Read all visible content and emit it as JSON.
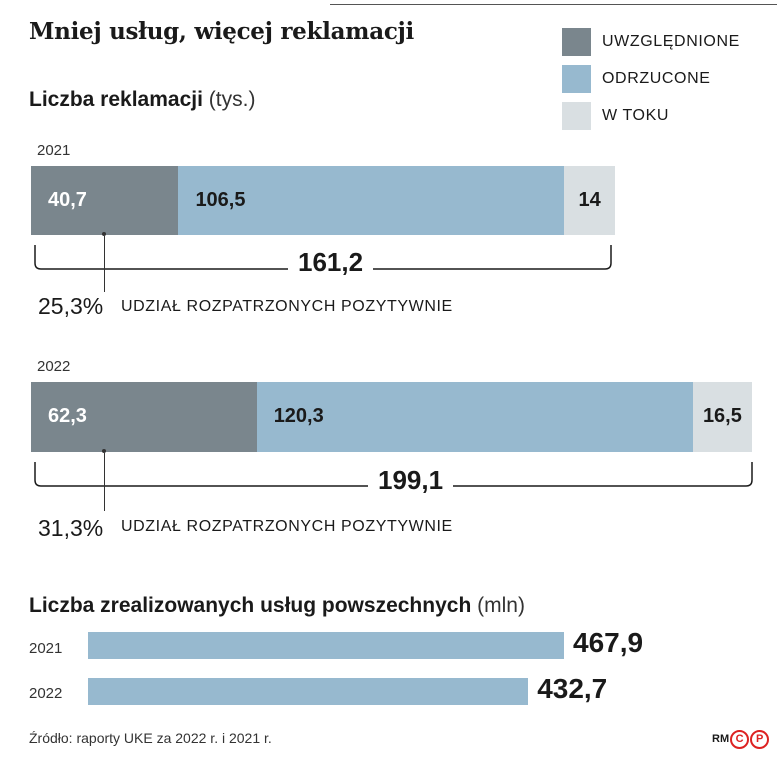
{
  "title": "Mniej usług, więcej reklamacji",
  "legend": [
    {
      "label": "UWZGLĘDNIONE",
      "color": "#7a868d"
    },
    {
      "label": "ODRZUCONE",
      "color": "#97b9cf"
    },
    {
      "label": "W TOKU",
      "color": "#d9dfe2"
    }
  ],
  "complaints": {
    "title_bold": "Liczba reklamacji",
    "title_unit": "(tys.)"
  },
  "services": {
    "title_bold": "Liczba zrealizowanych usług powszechnych",
    "title_unit": "(mln)"
  },
  "source": "Źródło: raporty UKE za 2022 r. i 2021 r.",
  "logo": {
    "text": "RM",
    "c": "C",
    "p": "P"
  },
  "chart_data": [
    {
      "type": "bar",
      "stacked": true,
      "orientation": "horizontal",
      "categories": [
        "2021",
        "2022"
      ],
      "series": [
        {
          "name": "UWZGLĘDNIONE",
          "values": [
            40.7,
            62.3
          ],
          "labels": [
            "40,7",
            "62,3"
          ]
        },
        {
          "name": "ODRZUCONE",
          "values": [
            106.5,
            120.3
          ],
          "labels": [
            "106,5",
            "120,3"
          ]
        },
        {
          "name": "W TOKU",
          "values": [
            14,
            16.5
          ],
          "labels": [
            "14",
            "16,5"
          ]
        }
      ],
      "totals": [
        "161,2",
        "199,1"
      ],
      "annotations": [
        {
          "value": "25,3%",
          "text": "UDZIAŁ ROZPATRZONYCH POZYTYWNIE"
        },
        {
          "value": "31,3%",
          "text": "UDZIAŁ ROZPATRZONYCH POZYTYWNIE"
        }
      ],
      "title": "Liczba reklamacji",
      "unit": "(tys.)",
      "legend_position": "top-right"
    },
    {
      "type": "bar",
      "orientation": "horizontal",
      "categories": [
        "2021",
        "2022"
      ],
      "values": [
        467.9,
        432.7
      ],
      "labels": [
        "467,9",
        "432,7"
      ],
      "title": "Liczba zrealizowanych usług powszechnych",
      "unit": "(mln)",
      "color": "#97b9cf"
    }
  ]
}
